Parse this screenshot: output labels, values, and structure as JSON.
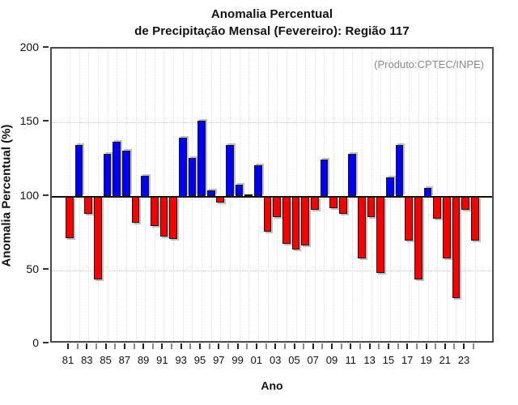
{
  "window": {
    "title_line1": "Anomalia Percentual",
    "title_line2": "de Precipitação Mensal (Fevereiro): Região 117",
    "annotation": "(Produto:CPTEC/INPE)"
  },
  "chart_data": {
    "type": "bar",
    "title": "Anomalia Percentual de Precipitação Mensal (Fevereiro): Região 117",
    "xlabel": "Ano",
    "ylabel": "Anomalia Percentual (%)",
    "ylim": [
      0,
      200
    ],
    "yticks": [
      0,
      50,
      100,
      150,
      200
    ],
    "baseline": 100,
    "hgridlines": [
      50,
      150
    ],
    "grid": "dotted",
    "legend": "none",
    "annotation": "(Produto:CPTEC/INPE)",
    "x_tick_labels": [
      "81",
      "83",
      "85",
      "87",
      "89",
      "91",
      "93",
      "95",
      "97",
      "99",
      "01",
      "03",
      "05",
      "07",
      "09",
      "11",
      "13",
      "15",
      "17",
      "19",
      "21",
      "23"
    ],
    "categories": [
      1981,
      1982,
      1983,
      1984,
      1985,
      1986,
      1987,
      1988,
      1989,
      1990,
      1991,
      1992,
      1993,
      1994,
      1995,
      1996,
      1997,
      1998,
      1999,
      2000,
      2001,
      2002,
      2003,
      2004,
      2005,
      2006,
      2007,
      2008,
      2009,
      2010,
      2011,
      2012,
      2013,
      2014,
      2015,
      2016,
      2017,
      2018,
      2019,
      2020,
      2021,
      2022,
      2023,
      2024
    ],
    "values": [
      72,
      135,
      88,
      44,
      129,
      137,
      131,
      82,
      114,
      80,
      73,
      71,
      140,
      126,
      151,
      104,
      96,
      135,
      108,
      100,
      121,
      76,
      86,
      68,
      64,
      67,
      91,
      125,
      92,
      88,
      129,
      58,
      86,
      48,
      113,
      135,
      70,
      44,
      106,
      85,
      58,
      31,
      91,
      70
    ],
    "colors": {
      "above_baseline": "#0000f8",
      "below_baseline": "#f80000",
      "bar_outline": "#1a1a1a",
      "baseline_line": "#111111",
      "annotation_text": "#8a8a8a"
    }
  }
}
